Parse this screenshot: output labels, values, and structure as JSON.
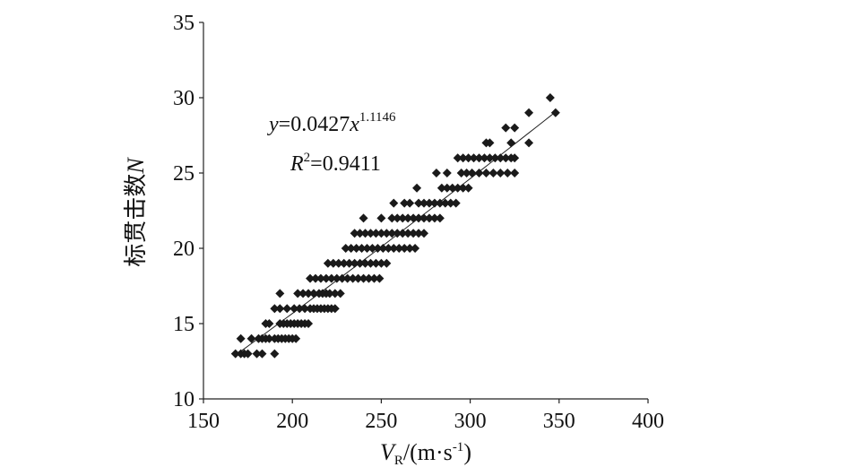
{
  "chart_data": {
    "type": "scatter",
    "xlabel": {
      "base": "V",
      "subscript": "R",
      "unit": "/(m·s",
      "superscript": "-1",
      "close": ")"
    },
    "ylabel": {
      "text": "标贯击数",
      "var": "N"
    },
    "xlim": [
      150,
      400
    ],
    "ylim": [
      10,
      35
    ],
    "xticks": [
      "150",
      "200",
      "250",
      "300",
      "350",
      "400"
    ],
    "yticks": [
      "10",
      "15",
      "20",
      "25",
      "30",
      "35"
    ],
    "grid": false,
    "legend": "none",
    "marker": "diamond",
    "marker_color": "#1a1a1a",
    "fit": {
      "type": "power",
      "a": 0.0427,
      "b": 1.1146,
      "x_range": [
        170,
        348
      ],
      "equation": {
        "lhs": "y",
        "mid": "=0.0427",
        "var": "x",
        "exp": "1.1146"
      },
      "r2": {
        "var": "R",
        "sup": "2",
        "value": "=0.9411"
      }
    },
    "points": [
      [
        168,
        13
      ],
      [
        171,
        13
      ],
      [
        173,
        13
      ],
      [
        175,
        13
      ],
      [
        180,
        13
      ],
      [
        183,
        13
      ],
      [
        190,
        13
      ],
      [
        171,
        14
      ],
      [
        177,
        14
      ],
      [
        181,
        14
      ],
      [
        183,
        14
      ],
      [
        185,
        14
      ],
      [
        187,
        14
      ],
      [
        190,
        14
      ],
      [
        192,
        14
      ],
      [
        194,
        14
      ],
      [
        196,
        14
      ],
      [
        198,
        14
      ],
      [
        200,
        14
      ],
      [
        202,
        14
      ],
      [
        185,
        15
      ],
      [
        187,
        15
      ],
      [
        193,
        15
      ],
      [
        195,
        15
      ],
      [
        197,
        15
      ],
      [
        199,
        15
      ],
      [
        201,
        15
      ],
      [
        203,
        15
      ],
      [
        205,
        15
      ],
      [
        207,
        15
      ],
      [
        209,
        15
      ],
      [
        190,
        16
      ],
      [
        193,
        16
      ],
      [
        197,
        16
      ],
      [
        201,
        16
      ],
      [
        204,
        16
      ],
      [
        207,
        16
      ],
      [
        210,
        16
      ],
      [
        212,
        16
      ],
      [
        214,
        16
      ],
      [
        216,
        16
      ],
      [
        218,
        16
      ],
      [
        220,
        16
      ],
      [
        222,
        16
      ],
      [
        224,
        16
      ],
      [
        193,
        17
      ],
      [
        203,
        17
      ],
      [
        206,
        17
      ],
      [
        209,
        17
      ],
      [
        212,
        17
      ],
      [
        215,
        17
      ],
      [
        217,
        17
      ],
      [
        219,
        17
      ],
      [
        221,
        17
      ],
      [
        224,
        17
      ],
      [
        227,
        17
      ],
      [
        210,
        18
      ],
      [
        213,
        18
      ],
      [
        216,
        18
      ],
      [
        219,
        18
      ],
      [
        222,
        18
      ],
      [
        225,
        18
      ],
      [
        228,
        18
      ],
      [
        231,
        18
      ],
      [
        234,
        18
      ],
      [
        237,
        18
      ],
      [
        240,
        18
      ],
      [
        243,
        18
      ],
      [
        246,
        18
      ],
      [
        249,
        18
      ],
      [
        220,
        19
      ],
      [
        223,
        19
      ],
      [
        226,
        19
      ],
      [
        229,
        19
      ],
      [
        232,
        19
      ],
      [
        235,
        19
      ],
      [
        238,
        19
      ],
      [
        241,
        19
      ],
      [
        244,
        19
      ],
      [
        247,
        19
      ],
      [
        250,
        19
      ],
      [
        253,
        19
      ],
      [
        230,
        20
      ],
      [
        233,
        20
      ],
      [
        236,
        20
      ],
      [
        239,
        20
      ],
      [
        242,
        20
      ],
      [
        245,
        20
      ],
      [
        248,
        20
      ],
      [
        251,
        20
      ],
      [
        254,
        20
      ],
      [
        257,
        20
      ],
      [
        260,
        20
      ],
      [
        263,
        20
      ],
      [
        266,
        20
      ],
      [
        269,
        20
      ],
      [
        235,
        21
      ],
      [
        238,
        21
      ],
      [
        241,
        21
      ],
      [
        244,
        21
      ],
      [
        247,
        21
      ],
      [
        250,
        21
      ],
      [
        253,
        21
      ],
      [
        256,
        21
      ],
      [
        259,
        21
      ],
      [
        262,
        21
      ],
      [
        265,
        21
      ],
      [
        268,
        21
      ],
      [
        271,
        21
      ],
      [
        274,
        21
      ],
      [
        240,
        22
      ],
      [
        250,
        22
      ],
      [
        256,
        22
      ],
      [
        259,
        22
      ],
      [
        262,
        22
      ],
      [
        265,
        22
      ],
      [
        268,
        22
      ],
      [
        271,
        22
      ],
      [
        274,
        22
      ],
      [
        277,
        22
      ],
      [
        280,
        22
      ],
      [
        283,
        22
      ],
      [
        257,
        23
      ],
      [
        263,
        23
      ],
      [
        266,
        23
      ],
      [
        271,
        23
      ],
      [
        274,
        23
      ],
      [
        277,
        23
      ],
      [
        280,
        23
      ],
      [
        283,
        23
      ],
      [
        286,
        23
      ],
      [
        289,
        23
      ],
      [
        292,
        23
      ],
      [
        270,
        24
      ],
      [
        284,
        24
      ],
      [
        287,
        24
      ],
      [
        290,
        24
      ],
      [
        293,
        24
      ],
      [
        296,
        24
      ],
      [
        299,
        24
      ],
      [
        281,
        25
      ],
      [
        287,
        25
      ],
      [
        295,
        25
      ],
      [
        298,
        25
      ],
      [
        301,
        25
      ],
      [
        305,
        25
      ],
      [
        309,
        25
      ],
      [
        313,
        25
      ],
      [
        317,
        25
      ],
      [
        321,
        25
      ],
      [
        325,
        25
      ],
      [
        293,
        26
      ],
      [
        296,
        26
      ],
      [
        299,
        26
      ],
      [
        302,
        26
      ],
      [
        305,
        26
      ],
      [
        308,
        26
      ],
      [
        311,
        26
      ],
      [
        314,
        26
      ],
      [
        317,
        26
      ],
      [
        320,
        26
      ],
      [
        323,
        26
      ],
      [
        325,
        26
      ],
      [
        309,
        27
      ],
      [
        311,
        27
      ],
      [
        323,
        27
      ],
      [
        333,
        27
      ],
      [
        320,
        28
      ],
      [
        325,
        28
      ],
      [
        333,
        29
      ],
      [
        348,
        29
      ],
      [
        345,
        30
      ]
    ]
  }
}
